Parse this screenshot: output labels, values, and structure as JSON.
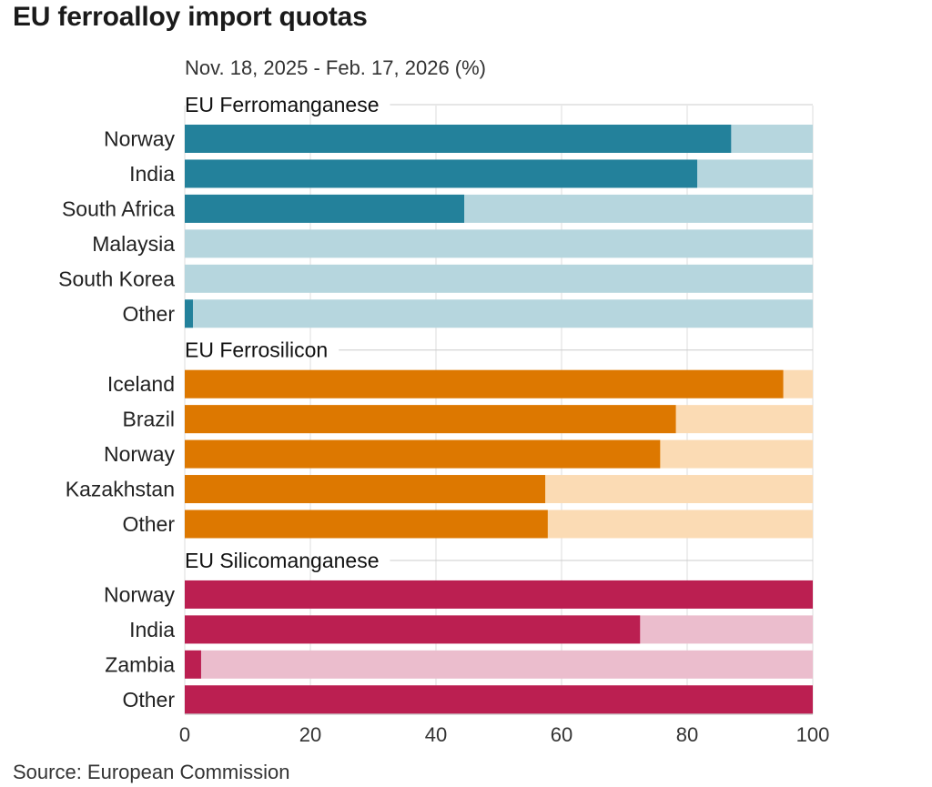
{
  "title": "EU ferroalloy import quotas",
  "subtitle": "Nov. 18, 2025 - Feb. 17, 2026 (%)",
  "source": "Source: European Commission",
  "chart_data": {
    "type": "bar",
    "orientation": "horizontal",
    "stacked_against_total": 100,
    "xlim": [
      0,
      100
    ],
    "x_ticks": [
      0,
      20,
      40,
      60,
      80,
      100
    ],
    "grid": true,
    "groups": [
      {
        "name": "EU Ferromanganese",
        "color": "#23819b",
        "light_color": "#b6d6de",
        "categories": [
          "Norway",
          "India",
          "South Africa",
          "Malaysia",
          "South Korea",
          "Other"
        ],
        "values": [
          87,
          81.6,
          44.5,
          0,
          0,
          1.3
        ]
      },
      {
        "name": "EU Ferrosilicon",
        "color": "#dd7800",
        "light_color": "#fbdbb4",
        "categories": [
          "Iceland",
          "Brazil",
          "Norway",
          "Kazakhstan",
          "Other"
        ],
        "values": [
          95.3,
          78.2,
          75.7,
          57.4,
          57.8
        ]
      },
      {
        "name": "EU Silicomanganese",
        "color": "#bb1f51",
        "light_color": "#ebbdcd",
        "categories": [
          "Norway",
          "India",
          "Zambia",
          "Other"
        ],
        "values": [
          100,
          72.5,
          2.6,
          100
        ]
      }
    ]
  }
}
